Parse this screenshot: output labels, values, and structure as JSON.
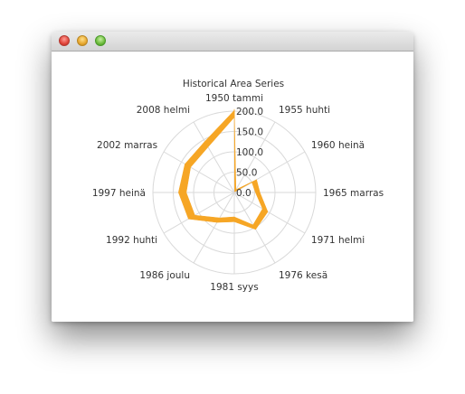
{
  "window": {
    "title": ""
  },
  "chart_data": {
    "type": "area",
    "projection": "polar",
    "title": "Historical Area Series",
    "angular_axis": {
      "labels": [
        "1950 tammi",
        "1955 huhti",
        "1960 heinä",
        "1965 marras",
        "1971 helmi",
        "1976 kesä",
        "1981 syys",
        "1986 joulu",
        "1992 huhti",
        "1997 heinä",
        "2002 marras",
        "2008 helmi"
      ]
    },
    "radial_axis": {
      "range": [
        0,
        200
      ],
      "tick_labels": [
        "0.0",
        "50.0",
        "100.0",
        "150.0",
        "200.0"
      ],
      "ticks": [
        0,
        50,
        100,
        150,
        200
      ]
    },
    "grid": true,
    "colors": {
      "fill": "#f6a625",
      "grid": "#d9d9d9"
    },
    "series": [
      {
        "x_index": [
          0,
          1,
          2,
          3,
          4,
          5,
          6,
          7,
          8,
          9,
          10,
          11,
          12
        ],
        "upper": [
          205,
          8,
          63,
          63,
          95,
          105,
          72,
          85,
          130,
          137,
          140,
          145,
          202
        ],
        "lower": [
          190,
          2,
          50,
          52,
          80,
          92,
          60,
          72,
          112,
          118,
          124,
          129,
          185
        ]
      }
    ]
  }
}
